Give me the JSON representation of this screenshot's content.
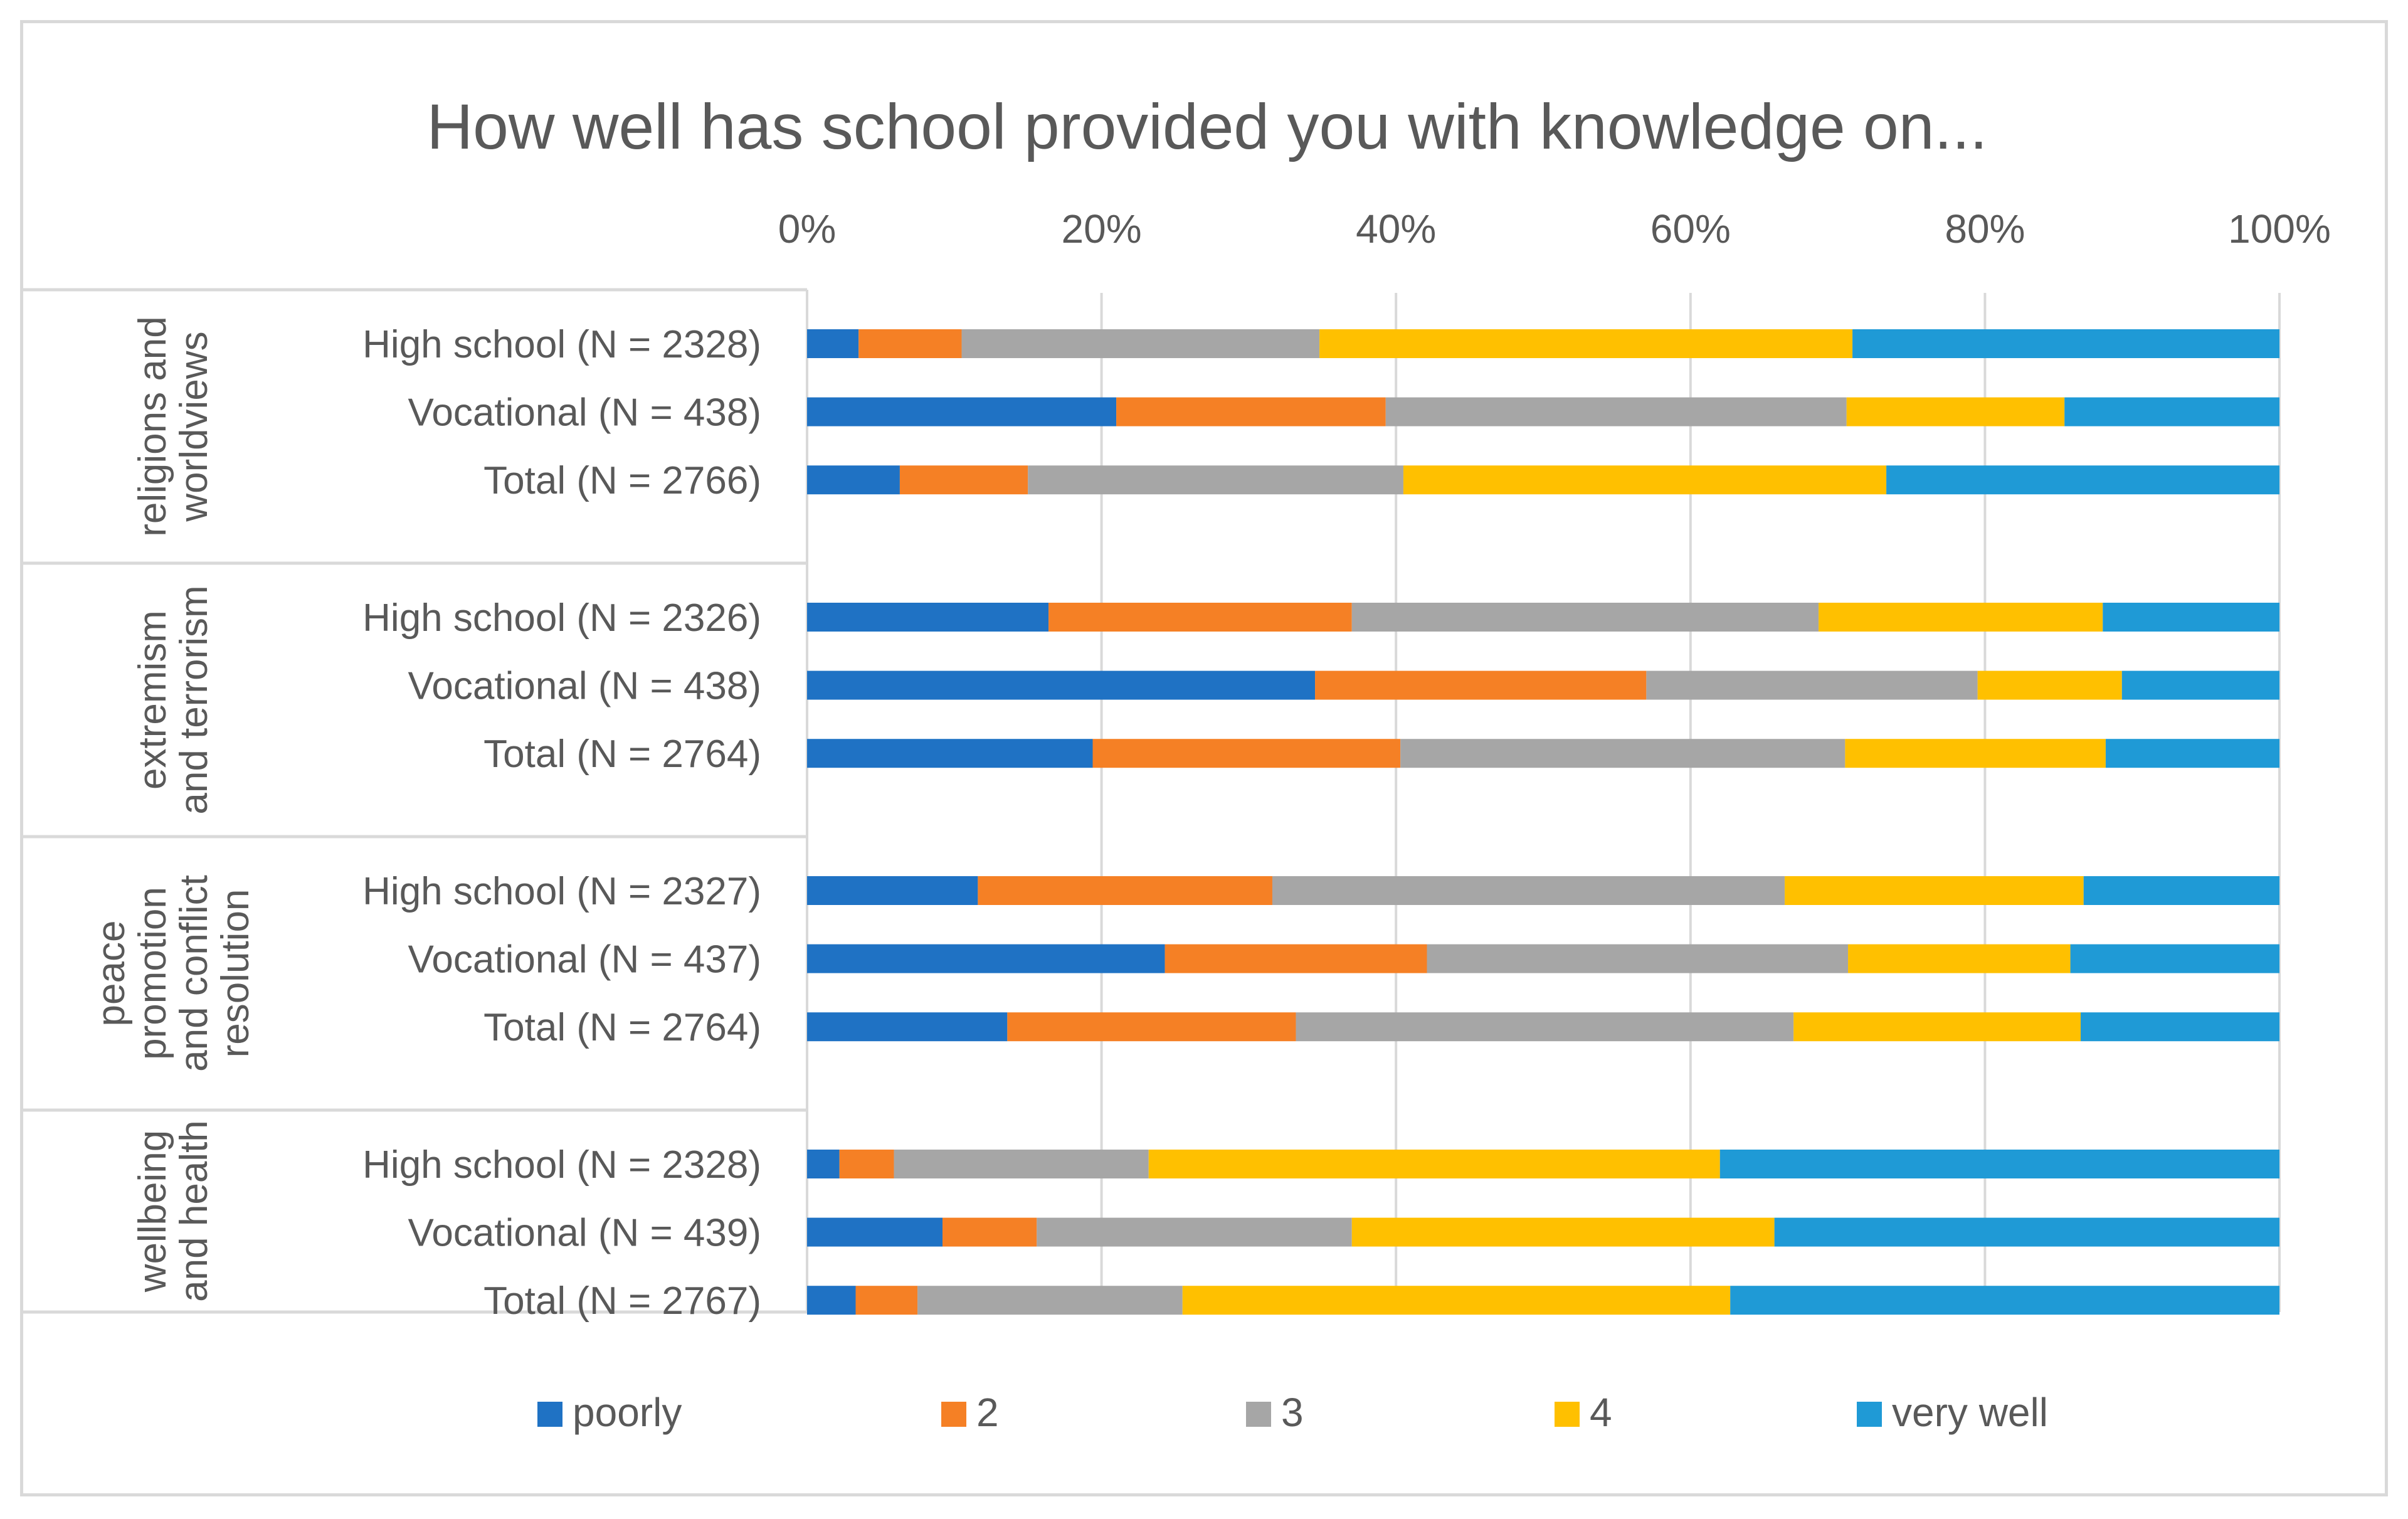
{
  "chart_data": {
    "type": "bar",
    "orientation": "horizontal",
    "stacked": "percent",
    "title": "How well has school provided you with knowledge on...",
    "xlim": [
      0,
      100
    ],
    "x_ticks": [
      "0%",
      "20%",
      "40%",
      "60%",
      "80%",
      "100%"
    ],
    "grid": true,
    "legend_position": "bottom",
    "colors": {
      "poorly": "#1f72c4",
      "2": "#f58025",
      "3": "#a6a6a6",
      "4": "#ffc000",
      "very well": "#1f9ad6"
    },
    "series_names": [
      "poorly",
      "2",
      "3",
      "4",
      "very well"
    ],
    "groups": [
      {
        "name_lines": [
          "religions and",
          "worldviews"
        ],
        "rows": [
          {
            "label": "High school (N = 2328)",
            "values": [
              3.5,
              7.0,
              24.3,
              36.2,
              29.0
            ]
          },
          {
            "label": "Vocational (N = 438)",
            "values": [
              21.0,
              18.3,
              31.3,
              14.8,
              14.6
            ]
          },
          {
            "label": "Total (N = 2766)",
            "values": [
              6.3,
              8.7,
              25.5,
              32.8,
              26.7
            ]
          }
        ]
      },
      {
        "name_lines": [
          "extremism",
          "and terrorism"
        ],
        "rows": [
          {
            "label": "High school (N = 2326)",
            "values": [
              16.4,
              20.6,
              31.7,
              19.3,
              12.0
            ]
          },
          {
            "label": "Vocational (N = 438)",
            "values": [
              34.5,
              22.5,
              22.5,
              9.8,
              10.7
            ]
          },
          {
            "label": "Total (N = 2764)",
            "values": [
              19.4,
              20.9,
              30.2,
              17.7,
              11.8
            ]
          }
        ]
      },
      {
        "name_lines": [
          "peace",
          "promotion",
          "and conflict",
          "resolution"
        ],
        "rows": [
          {
            "label": "High school (N = 2327)",
            "values": [
              11.6,
              20.0,
              34.8,
              20.3,
              13.3
            ]
          },
          {
            "label": "Vocational (N = 437)",
            "values": [
              24.3,
              17.8,
              28.6,
              15.1,
              14.2
            ]
          },
          {
            "label": "Total (N = 2764)",
            "values": [
              13.6,
              19.6,
              33.8,
              19.5,
              13.5
            ]
          }
        ]
      },
      {
        "name_lines": [
          "wellbeing",
          "and health"
        ],
        "rows": [
          {
            "label": "High school (N = 2328)",
            "values": [
              2.2,
              3.7,
              17.3,
              38.8,
              38.0
            ]
          },
          {
            "label": "Vocational (N = 439)",
            "values": [
              9.2,
              6.4,
              21.4,
              28.7,
              34.3
            ]
          },
          {
            "label": "Total (N = 2767)",
            "values": [
              3.3,
              4.2,
              18.0,
              37.2,
              37.3
            ]
          }
        ]
      }
    ]
  }
}
